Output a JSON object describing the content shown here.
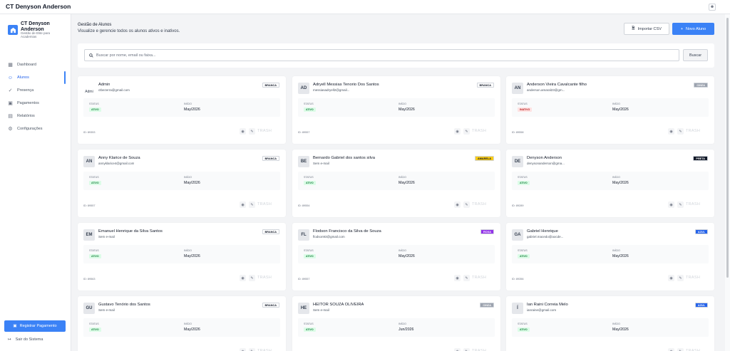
{
  "app": {
    "title": "CT Denyson Anderson",
    "user_icon": "user-icon"
  },
  "sidebar": {
    "brand_name": "CT Denyson Anderson",
    "brand_subtitle": "Gestão de Elite para Academias",
    "items": [
      {
        "label": "Dashboard",
        "icon": "grid-icon",
        "active": false
      },
      {
        "label": "Alunos",
        "icon": "users-icon",
        "active": true
      },
      {
        "label": "Presença",
        "icon": "user-check-icon",
        "active": false
      },
      {
        "label": "Pagamentos",
        "icon": "cash-icon",
        "active": false
      },
      {
        "label": "Relatórios",
        "icon": "chart-icon",
        "active": false
      },
      {
        "label": "Configurações",
        "icon": "gear-icon",
        "active": false
      }
    ],
    "register_payment": "Registrar Pagamento",
    "logout": "Sair do Sistema"
  },
  "header": {
    "title": "Gestão de Alunos",
    "subtitle": "Visualize e gerencie todos os alunos ativos e inativos.",
    "import_label": "Importar CSV",
    "new_label": "Novo Aluno"
  },
  "search": {
    "placeholder": "Buscar por nome, email ou faixa...",
    "button": "Buscar"
  },
  "labels": {
    "status": "STATUS",
    "start": "INÍCIO",
    "trash": "TRASH"
  },
  "students": [
    {
      "initials": "Admi",
      "image": true,
      "name": "Admin",
      "email": "ctbezerra@gmail.com",
      "belt": "BRANCA",
      "status": "ATIVO",
      "start": "May/2026",
      "id": "ID: 89353"
    },
    {
      "initials": "AD",
      "image": false,
      "name": "Adryell Messias Tenorio Dos Santos",
      "email": "messiasadryell2@gmail...",
      "belt": "BRANCA",
      "status": "ATIVO",
      "start": "May/2026",
      "id": "ID: 89557"
    },
    {
      "initials": "AN",
      "image": false,
      "name": "Anderson Vieira Cavalcante filho",
      "email": "anderson.amaral23@gm...",
      "belt": "CINZA",
      "status": "INATIVO",
      "start": "May/2026",
      "id": "ID: 89558"
    },
    {
      "initials": "AN",
      "image": false,
      "name": "Anny Klarice de Souza",
      "email": "annyklarice4@gmail.com",
      "belt": "BRANCA",
      "status": "ATIVO",
      "start": "May/2026",
      "id": "ID: 89557"
    },
    {
      "initials": "BE",
      "image": false,
      "name": "Bernardo Gabriel dos santos silva",
      "email": "Sem e-mail",
      "belt": "AMARELA",
      "status": "ATIVO",
      "start": "May/2026",
      "id": "ID: 89554"
    },
    {
      "initials": "DE",
      "image": false,
      "name": "Denyson Anderson",
      "email": "denysonanderson@gma...",
      "belt": "PRETA",
      "status": "ATIVO",
      "start": "May/2026",
      "id": "ID: 89289"
    },
    {
      "initials": "EM",
      "image": false,
      "name": "Emanuel Henrique da Silva Santos",
      "email": "Sem e-mail",
      "belt": "BRANCA",
      "status": "ATIVO",
      "start": "May/2026",
      "id": "ID: 89563"
    },
    {
      "initials": "FL",
      "image": false,
      "name": "Flodson Francisco da Silva de Souza",
      "email": "flodson93@gmail.com",
      "belt": "ROXA",
      "status": "ATIVO",
      "start": "May/2026",
      "id": "ID: 89557"
    },
    {
      "initials": "GA",
      "image": false,
      "name": "Gabriel Henrique",
      "email": "gabriel.macedo@aocde...",
      "belt": "AZUL",
      "status": "ATIVO",
      "start": "May/2026",
      "id": "ID: 89356"
    },
    {
      "initials": "GU",
      "image": false,
      "name": "Gustavo Tenório dos Santos",
      "email": "Sem e-mail",
      "belt": "BRANCA",
      "status": "ATIVO",
      "start": "May/2026",
      "id": ""
    },
    {
      "initials": "HE",
      "image": false,
      "name": "HEITOR SOUZA OLIVEIRA",
      "email": "Sem e-mail",
      "belt": "CINZA",
      "status": "ATIVO",
      "start": "Jun/2026",
      "id": ""
    },
    {
      "initials": "Í",
      "image": false,
      "name": "Ían Raini Correia Melo",
      "email": "ianraine@gmail.com",
      "belt": "AZUL",
      "status": "ATIVO",
      "start": "May/2026",
      "id": ""
    }
  ],
  "belt_colors": {
    "BRANCA": {
      "bg": "#ffffff",
      "fg": "#111827"
    },
    "CINZA": {
      "bg": "#9ca3af",
      "fg": "#ffffff"
    },
    "AMARELA": {
      "bg": "#facc15",
      "fg": "#111827"
    },
    "PRETA": {
      "bg": "#111827",
      "fg": "#ffffff"
    },
    "ROXA": {
      "bg": "#9333ea",
      "fg": "#ffffff"
    },
    "AZUL": {
      "bg": "#2563eb",
      "fg": "#ffffff"
    }
  },
  "colors": {
    "accent": "#3b82f6",
    "active_green": "#15803d",
    "inactive_red": "#b91c1c"
  }
}
